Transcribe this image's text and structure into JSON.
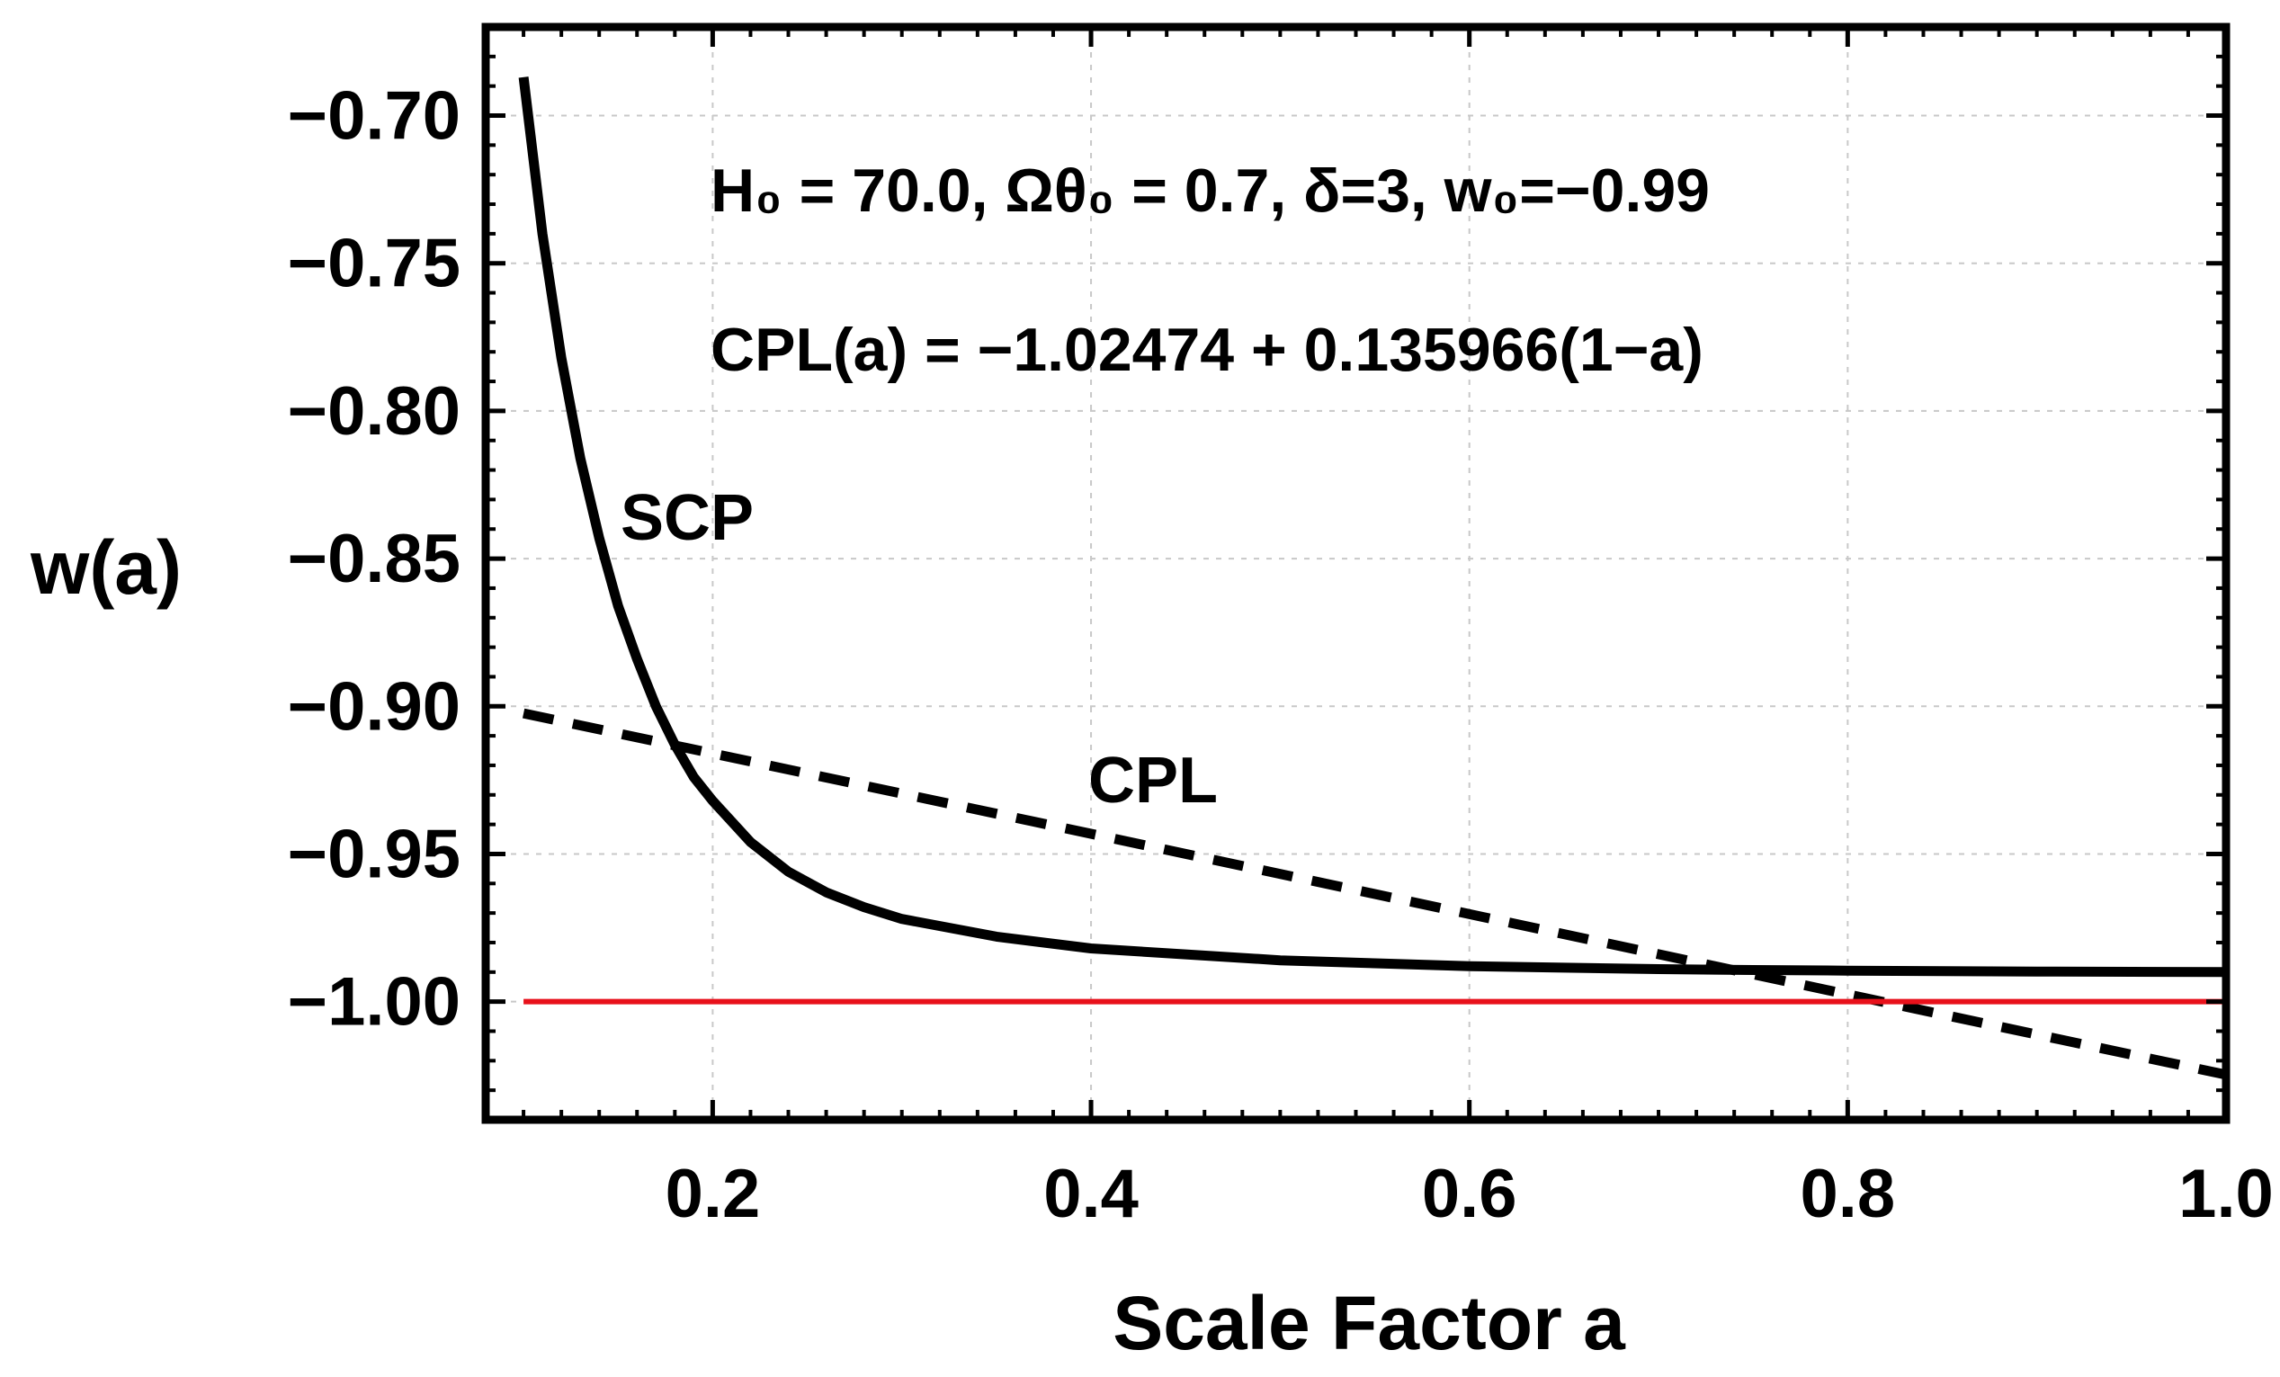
{
  "chart_data": {
    "type": "line",
    "title": "",
    "xlabel": "Scale Factor a",
    "ylabel": "w(a)",
    "xlim": [
      0.08,
      1.0
    ],
    "ylim": [
      -1.04,
      -0.67
    ],
    "xticks": [
      0.2,
      0.4,
      0.6,
      0.8,
      1.0
    ],
    "xtick_labels": [
      "0.2",
      "0.4",
      "0.6",
      "0.8",
      "1.0"
    ],
    "yticks": [
      -0.7,
      -0.75,
      -0.8,
      -0.85,
      -0.9,
      -0.95,
      -1.0
    ],
    "ytick_labels": [
      "−0.70",
      "−0.75",
      "−0.80",
      "−0.85",
      "−0.90",
      "−0.95",
      "−1.00"
    ],
    "grid": true,
    "annotations": {
      "params_line1": "H₀ = 70.0, Ωθ₀ = 0.7, δ=3, w₀=−0.99",
      "params_line2": "CPL(a) = −1.02474  + 0.135966(1−a)"
    },
    "series": [
      {
        "name": "SCP",
        "style": "solid",
        "color": "#000000",
        "x": [
          0.1,
          0.11,
          0.12,
          0.13,
          0.14,
          0.15,
          0.16,
          0.17,
          0.18,
          0.19,
          0.2,
          0.22,
          0.24,
          0.26,
          0.28,
          0.3,
          0.35,
          0.4,
          0.45,
          0.5,
          0.55,
          0.6,
          0.65,
          0.7,
          0.75,
          0.8,
          0.85,
          0.9,
          0.95,
          1.0
        ],
        "y": [
          -0.687,
          -0.74,
          -0.782,
          -0.816,
          -0.843,
          -0.866,
          -0.884,
          -0.9,
          -0.913,
          -0.924,
          -0.932,
          -0.946,
          -0.956,
          -0.963,
          -0.968,
          -0.972,
          -0.978,
          -0.982,
          -0.984,
          -0.986,
          -0.987,
          -0.988,
          -0.9885,
          -0.989,
          -0.9893,
          -0.9895,
          -0.9897,
          -0.9898,
          -0.9899,
          -0.99
        ]
      },
      {
        "name": "CPL",
        "style": "dashed",
        "color": "#000000",
        "x": [
          0.1,
          1.0
        ],
        "y": [
          -0.90237,
          -1.02474
        ]
      },
      {
        "name": "w = -1",
        "style": "solid",
        "color": "#e8111b",
        "x": [
          0.1,
          1.0
        ],
        "y": [
          -1.0,
          -1.0
        ]
      }
    ]
  }
}
